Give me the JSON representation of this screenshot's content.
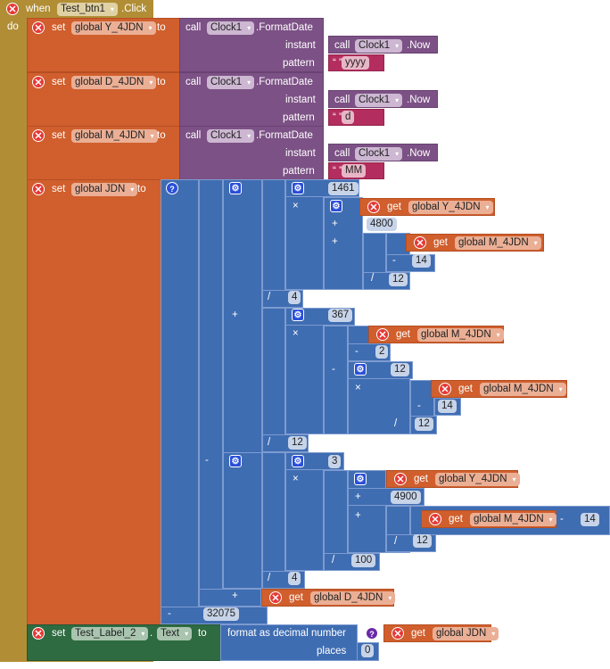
{
  "event": {
    "when": "when",
    "component": "Test_btn1",
    "event": ".Click",
    "do": "do"
  },
  "kw": {
    "set": "set",
    "to": "to",
    "call": "call",
    "get": "get",
    "instant": "instant",
    "pattern": "pattern",
    "format_date": ".FormatDate",
    "now": ".Now",
    "dot": ".",
    "format_decimal": "format as decimal number",
    "places": "places"
  },
  "clock": "Clock1",
  "vars": {
    "y": "global Y_4JDN",
    "d": "global D_4JDN",
    "m": "global M_4JDN",
    "jdn": "global JDN"
  },
  "patterns": {
    "y": "yyyy",
    "d": "d",
    "m": "MM"
  },
  "ops": {
    "plus": "+",
    "minus": "-",
    "times": "×",
    "divide": "/"
  },
  "numbers": {
    "n1461": "1461",
    "n4800": "4800",
    "n14a": "14",
    "n12a": "12",
    "n4a": "4",
    "n367": "367",
    "n2": "2",
    "n12b": "12",
    "n14b": "14",
    "n12c": "12",
    "n12d": "12",
    "n3": "3",
    "n4900": "4900",
    "n14c": "14",
    "n12e": "12",
    "n100": "100",
    "n4b": "4",
    "n32075": "32075",
    "n0": "0"
  },
  "label": {
    "component": "Test_Label_2",
    "property": "Text"
  },
  "colors": {
    "event": "#B18E35",
    "variable": "#D05F2D",
    "procedure": "#7C5185",
    "text": "#B32D5E",
    "math": "#3F6DB2",
    "component_setter": "#2E6B41"
  }
}
